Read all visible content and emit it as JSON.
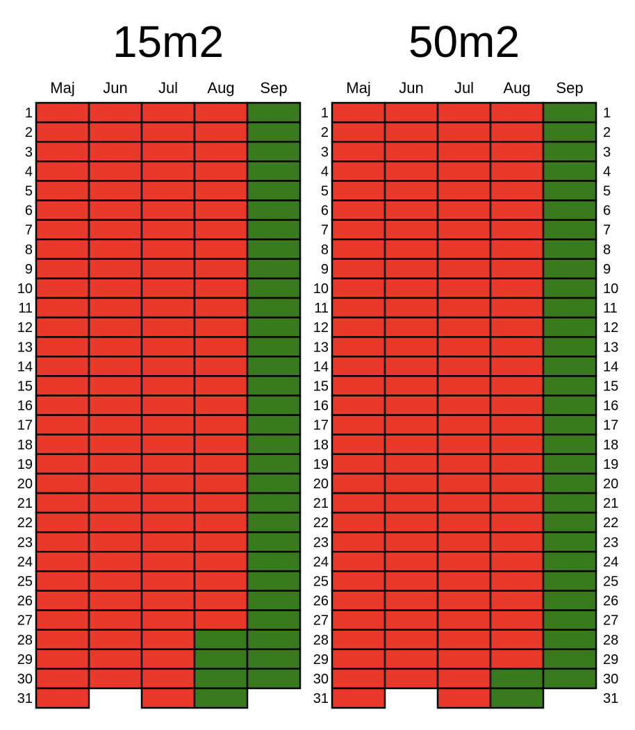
{
  "chart_data": [
    {
      "type": "heatmap",
      "title": "15m2",
      "months": [
        "Maj",
        "Jun",
        "Jul",
        "Aug",
        "Sep"
      ],
      "days_in_month": [
        31,
        30,
        31,
        31,
        30
      ],
      "green_from_day": [
        null,
        null,
        null,
        28,
        1
      ],
      "day_labels_side": "left"
    },
    {
      "type": "heatmap",
      "title": "50m2",
      "months": [
        "Maj",
        "Jun",
        "Jul",
        "Aug",
        "Sep"
      ],
      "days_in_month": [
        31,
        30,
        31,
        31,
        30
      ],
      "green_from_day": [
        null,
        null,
        null,
        30,
        1
      ],
      "day_labels_side": "both"
    }
  ],
  "day_labels": [
    "1",
    "2",
    "3",
    "4",
    "5",
    "6",
    "7",
    "8",
    "9",
    "10",
    "11",
    "12",
    "13",
    "14",
    "15",
    "16",
    "17",
    "18",
    "19",
    "20",
    "21",
    "22",
    "23",
    "24",
    "25",
    "26",
    "27",
    "28",
    "29",
    "30",
    "31"
  ],
  "colors": {
    "red": "#e8392b",
    "green": "#3a7a1e",
    "border": "#000000"
  }
}
